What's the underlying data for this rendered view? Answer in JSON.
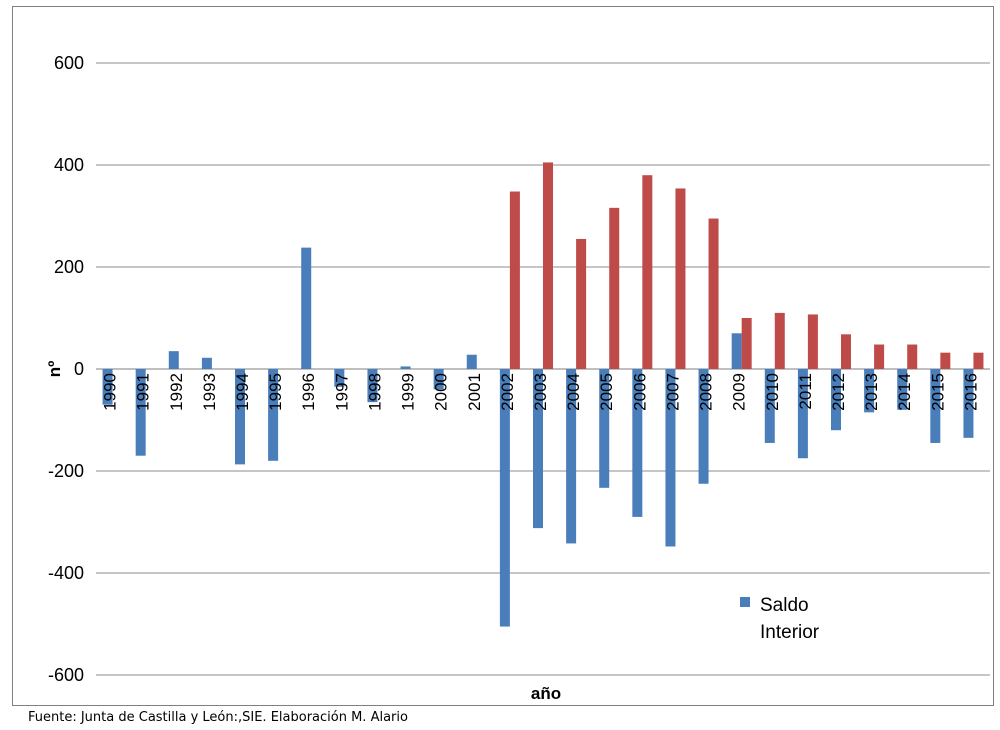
{
  "chart_data": {
    "type": "bar",
    "ylabel": "nº",
    "xlabel": "año",
    "ylim": [
      -600,
      600
    ],
    "yticks": [
      600,
      400,
      200,
      0,
      -200,
      -400,
      -600
    ],
    "grid": true,
    "categories": [
      "1990",
      "1991",
      "1992",
      "1993",
      "1994",
      "1995",
      "1996",
      "1997",
      "1998",
      "1999",
      "2000",
      "2001",
      "2002",
      "2003",
      "2004",
      "2005",
      "2006",
      "2007",
      "2008",
      "2009",
      "2010",
      "2011",
      "2012",
      "2013",
      "2014",
      "2015",
      "2016"
    ],
    "legend_position": "bottom-right",
    "series": [
      {
        "name": "Saldo Interior",
        "color": "#4a7ebb",
        "values": [
          -70,
          -170,
          35,
          22,
          -187,
          -180,
          238,
          -35,
          -65,
          5,
          -40,
          28,
          -505,
          -312,
          -342,
          -233,
          -290,
          -348,
          -225,
          70,
          -145,
          -175,
          -120,
          -85,
          -80,
          -145,
          -135
        ]
      },
      {
        "name": "",
        "color": "#be4b48",
        "values": [
          0,
          0,
          0,
          0,
          0,
          0,
          0,
          0,
          0,
          0,
          0,
          0,
          348,
          405,
          255,
          316,
          380,
          354,
          295,
          100,
          110,
          107,
          68,
          48,
          48,
          32,
          32
        ]
      }
    ]
  },
  "legend": {
    "label_line1": "Saldo",
    "label_line2": "Interior"
  },
  "source": "Fuente: Junta de Castilla y León:,SIE. Elaboración M. Alario"
}
